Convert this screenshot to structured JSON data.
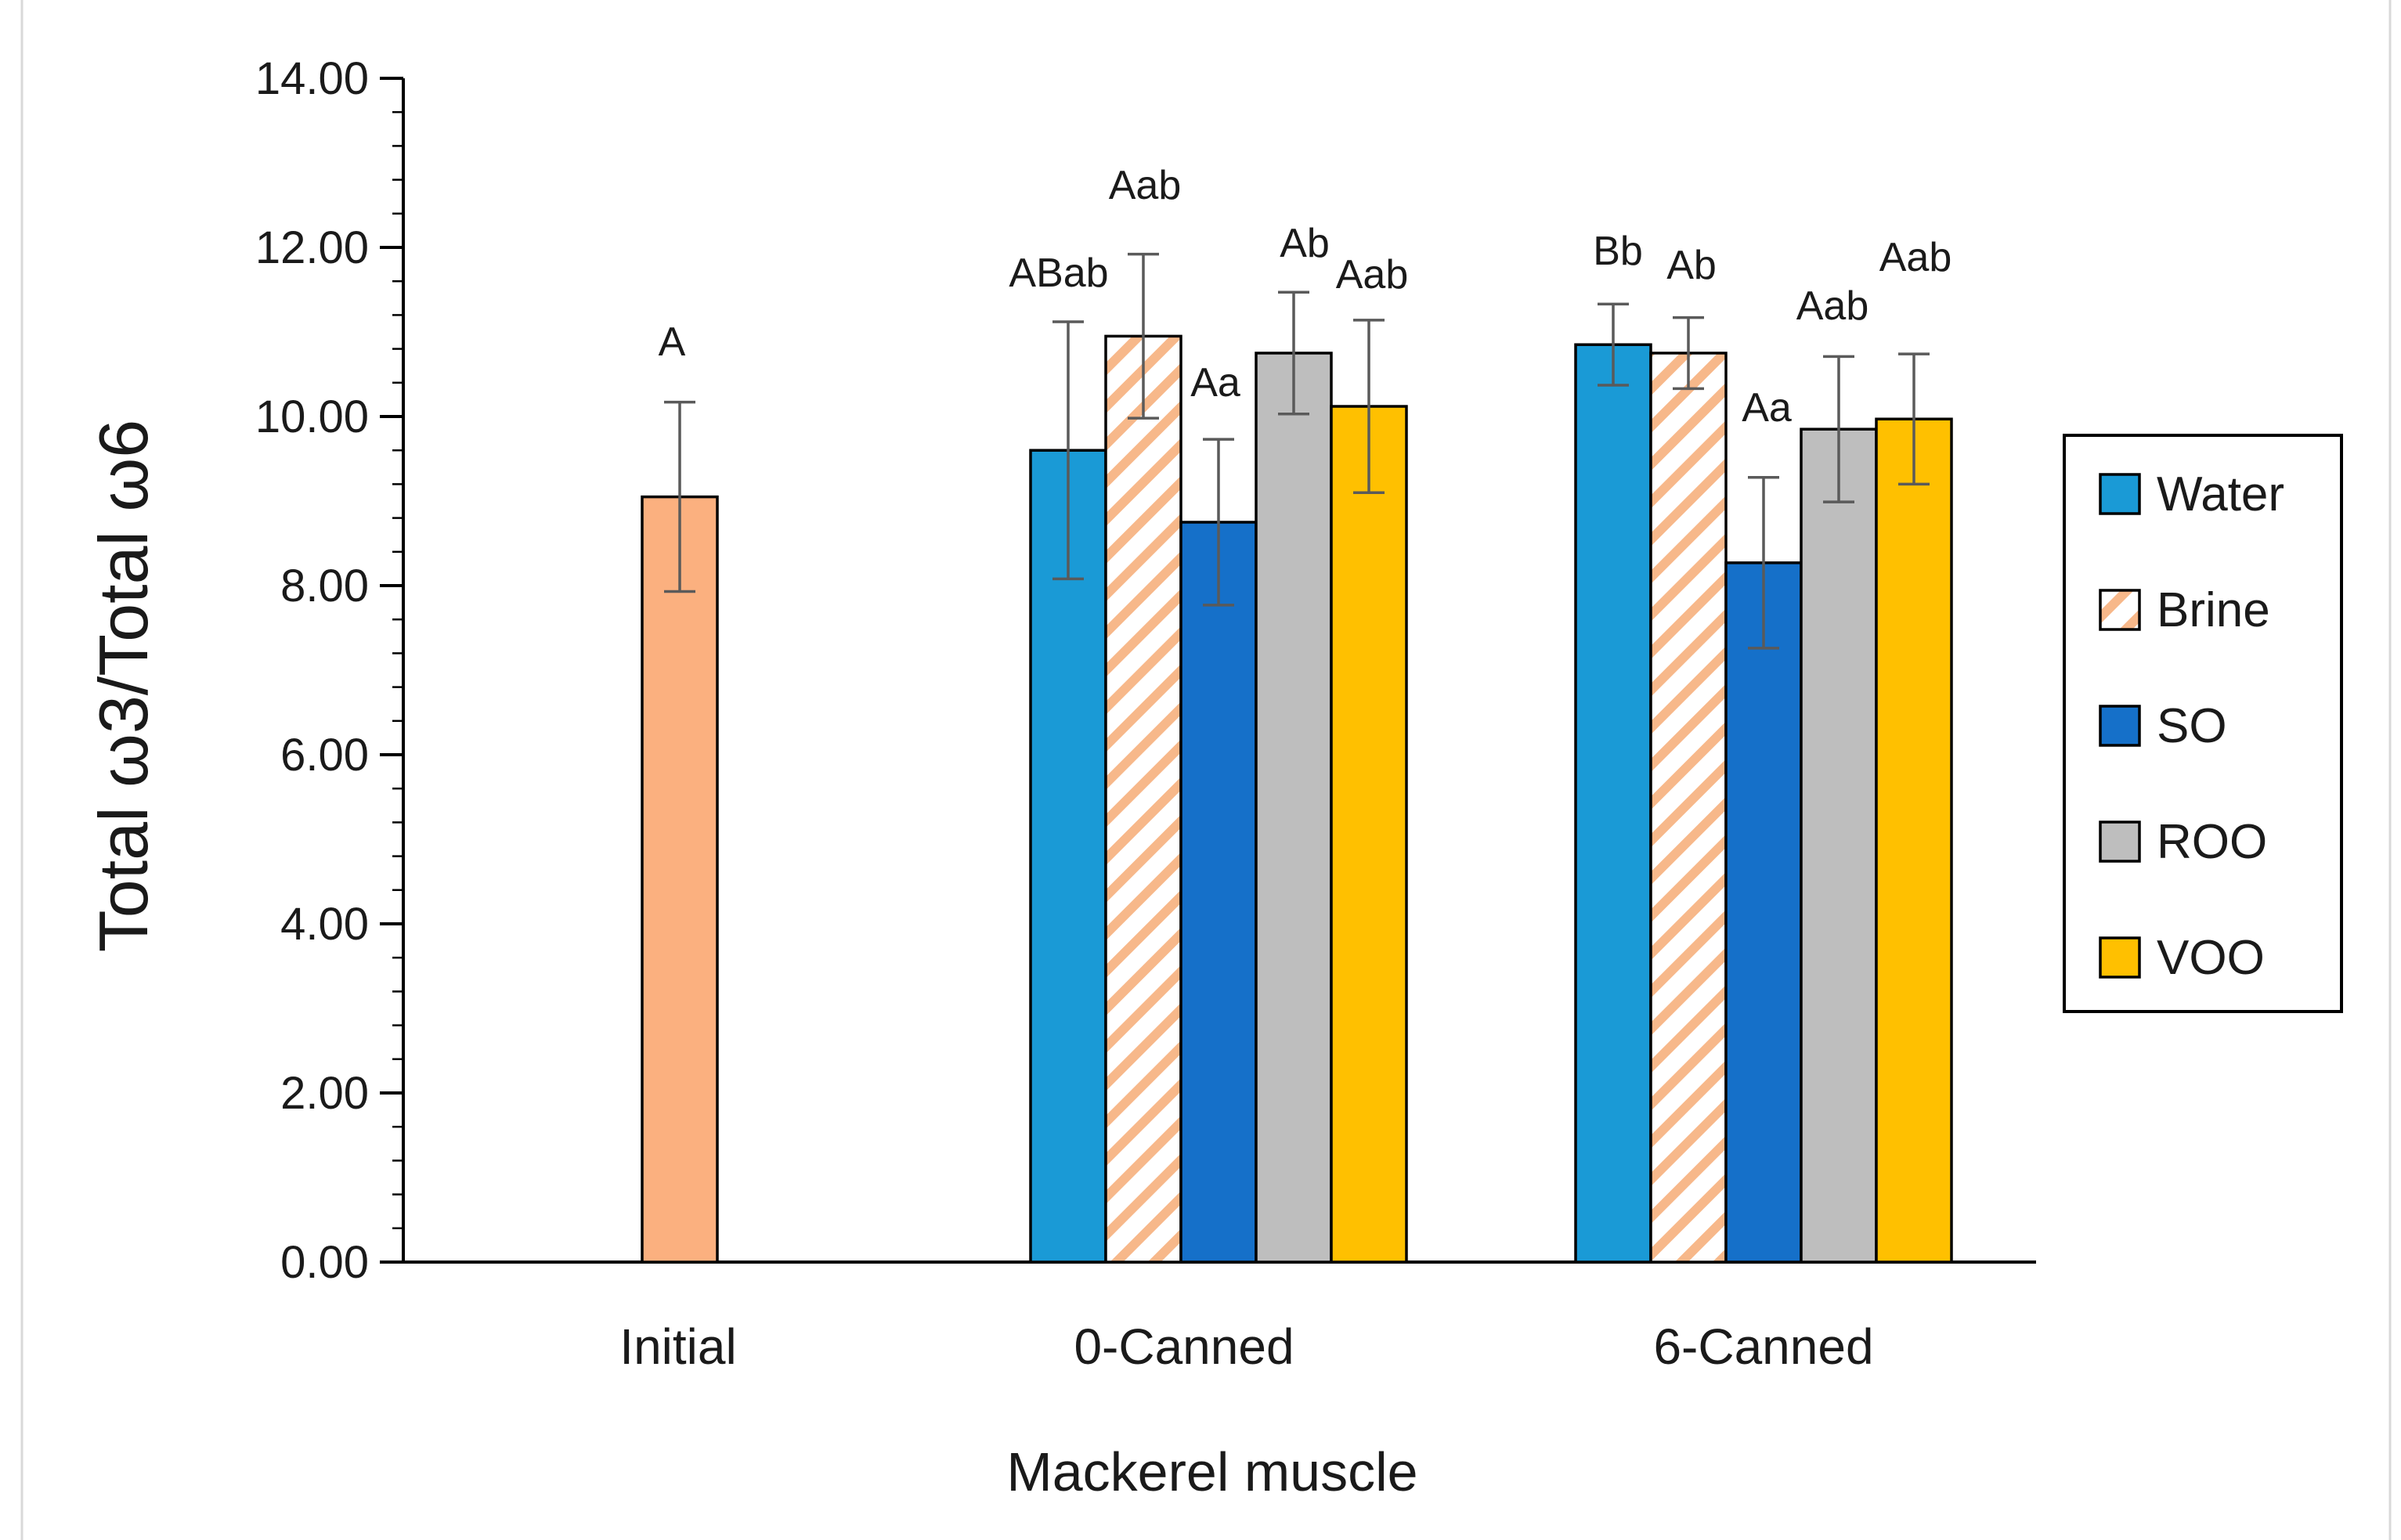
{
  "chart_data": {
    "type": "bar",
    "title": "",
    "xlabel": "Mackerel muscle",
    "ylabel": "Total ω3/Total ω6",
    "ylim": [
      0,
      14
    ],
    "y_ticks": [
      "0.00",
      "2.00",
      "4.00",
      "6.00",
      "8.00",
      "10.00",
      "12.00",
      "14.00"
    ],
    "y_tick_values": [
      0,
      2,
      4,
      6,
      8,
      10,
      12,
      14
    ],
    "grid": false,
    "legend_position": "right",
    "categories": [
      "Initial",
      "0-Canned",
      "6-Canned"
    ],
    "series_styles": [
      {
        "name": "Water",
        "color": "#1a9ad6",
        "pattern": "solid"
      },
      {
        "name": "Brine",
        "color": "#f7b88a",
        "pattern": "hatched"
      },
      {
        "name": "SO",
        "color": "#1570c9",
        "pattern": "solid"
      },
      {
        "name": "ROO",
        "color": "#bebebe",
        "pattern": "solid"
      },
      {
        "name": "VOO",
        "color": "#ffc000",
        "pattern": "solid"
      }
    ],
    "groups": [
      {
        "category": "Initial",
        "bars": [
          {
            "series": "Initial",
            "color": "#fbb07f",
            "pattern": "solid",
            "value": 9.05,
            "err": 1.12,
            "label": "A"
          }
        ]
      },
      {
        "category": "0-Canned",
        "bars": [
          {
            "series": "Water",
            "value": 9.6,
            "err": 1.52,
            "label": "ABab"
          },
          {
            "series": "Brine",
            "value": 10.95,
            "err": 0.97,
            "label": "Aab"
          },
          {
            "series": "SO",
            "value": 8.75,
            "err": 0.98,
            "label": "Aa"
          },
          {
            "series": "ROO",
            "value": 10.75,
            "err": 0.72,
            "label": "Ab"
          },
          {
            "series": "VOO",
            "value": 10.12,
            "err": 1.02,
            "label": "Aab"
          }
        ]
      },
      {
        "category": "6-Canned",
        "bars": [
          {
            "series": "Water",
            "value": 10.85,
            "err": 0.48,
            "label": "Bb"
          },
          {
            "series": "Brine",
            "value": 10.75,
            "err": 0.42,
            "label": "Ab"
          },
          {
            "series": "SO",
            "value": 8.27,
            "err": 1.01,
            "label": "Aa"
          },
          {
            "series": "ROO",
            "value": 9.85,
            "err": 0.86,
            "label": "Aab"
          },
          {
            "series": "VOO",
            "value": 9.97,
            "err": 0.77,
            "label": "Aab"
          }
        ]
      }
    ]
  }
}
